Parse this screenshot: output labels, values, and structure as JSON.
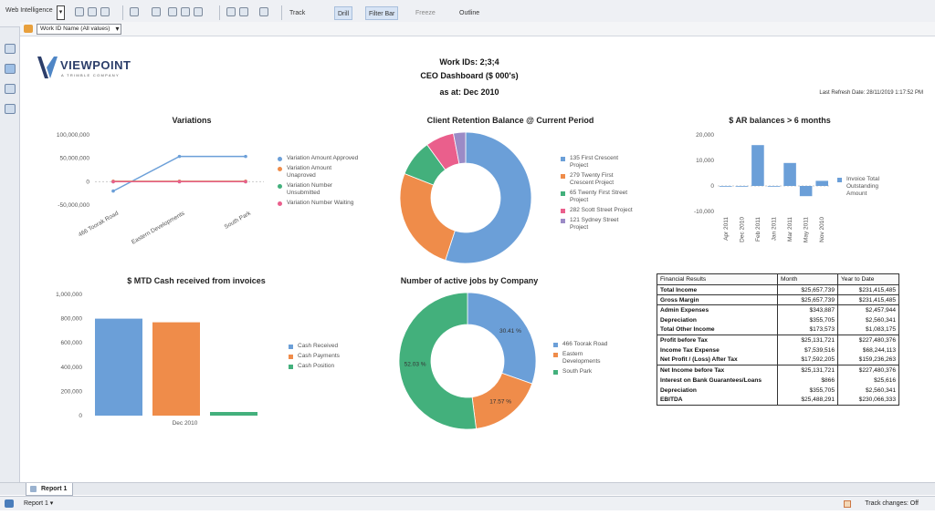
{
  "toolbar": {
    "app_label": "Web Intelligence",
    "track_label": "Track",
    "drill_label": "Drill",
    "filter_bar_label": "Filter Bar",
    "freeze_label": "Freeze",
    "outline_label": "Outline"
  },
  "filter_bar": {
    "prompt_value": "Work ID Name (All values)"
  },
  "report": {
    "logo_text": "VIEWPOINT",
    "logo_sub": "A TRIMBLE COMPANY",
    "header_line1": "Work IDs: 2;3;4",
    "header_line2": "CEO Dashboard ($ 000's)",
    "header_line3": "as at: Dec 2010",
    "last_refresh": "Last Refresh Date: 28/11/2019 1:17:52 PM"
  },
  "colors": {
    "blue": "#6b9fd8",
    "orange": "#ef8c4a",
    "green": "#43b07c",
    "pink": "#ea5f8c",
    "purple": "#9b8bc6",
    "red": "#e5534b"
  },
  "chart_data": [
    {
      "type": "line",
      "title": "Variations",
      "categories": [
        "466 Toorak Road",
        "Eastern Developments",
        "South Park"
      ],
      "yticks": [
        "100,000,000",
        "50,000,000",
        "0",
        "-50,000,000"
      ],
      "ylim": [
        -50000000,
        100000000
      ],
      "series": [
        {
          "name": "Variation Amount Approved",
          "values": [
            -20000000,
            54000000,
            54000000
          ],
          "color": "#6b9fd8"
        },
        {
          "name": "Variation Amount Unaproved",
          "values": [
            1000000,
            1000000,
            1000000
          ],
          "color": "#ef8c4a"
        },
        {
          "name": "Variation Number Unsubmitted",
          "values": [
            0,
            0,
            0
          ],
          "color": "#43b07c"
        },
        {
          "name": "Variation Number Waiting",
          "values": [
            0,
            0,
            0
          ],
          "color": "#ea5f8c"
        }
      ]
    },
    {
      "type": "pie",
      "title": "Client Retention Balance @ Current Period",
      "slices": [
        {
          "label": "135 First Crescent Project",
          "value": 55,
          "color": "#6b9fd8"
        },
        {
          "label": "279 Twenty First Crescent Project",
          "value": 26,
          "color": "#ef8c4a"
        },
        {
          "label": "65 Twenty First Street Project",
          "value": 9,
          "color": "#43b07c"
        },
        {
          "label": "282 Scott Street Project",
          "value": 7,
          "color": "#ea5f8c"
        },
        {
          "label": "121 Sydney Street Project",
          "value": 3,
          "color": "#9b8bc6"
        }
      ]
    },
    {
      "type": "bar",
      "title": "$ AR balances > 6 months",
      "categories": [
        "Apr 2011",
        "Dec 2010",
        "Feb 2011",
        "Jan 2011",
        "Mar 2011",
        "May 2011",
        "Nov 2010"
      ],
      "values": [
        0,
        0,
        16000,
        0,
        9000,
        -4000,
        2000
      ],
      "ylim": [
        -10000,
        20000
      ],
      "yticks": [
        "20,000",
        "10,000",
        "0",
        "-10,000"
      ],
      "series_name": "Invoice Total Outstanding Amount",
      "color": "#6b9fd8"
    },
    {
      "type": "bar",
      "title": "$ MTD Cash received from invoices",
      "categories": [
        "Dec 2010"
      ],
      "yticks": [
        "1,000,000",
        "800,000",
        "600,000",
        "400,000",
        "200,000",
        "0"
      ],
      "ylim": [
        0,
        1000000
      ],
      "series": [
        {
          "name": "Cash Received",
          "values": [
            800000
          ],
          "color": "#6b9fd8"
        },
        {
          "name": "Cash Payments",
          "values": [
            770000
          ],
          "color": "#ef8c4a"
        },
        {
          "name": "Cash Position",
          "values": [
            30000
          ],
          "color": "#43b07c"
        }
      ]
    },
    {
      "type": "pie",
      "title": "Number of active jobs by Company",
      "slices": [
        {
          "label": "466 Toorak Road",
          "value": 30.41,
          "text": "30.41 %",
          "color": "#6b9fd8"
        },
        {
          "label": "Eastern Developments",
          "value": 17.57,
          "text": "17.57 %",
          "color": "#ef8c4a"
        },
        {
          "label": "South Park",
          "value": 52.03,
          "text": "52.03 %",
          "color": "#43b07c"
        }
      ]
    }
  ],
  "financial": {
    "headers": [
      "Financial Results",
      "Month",
      "Year to Date"
    ],
    "rows": [
      {
        "label": "Total Income",
        "month": "$25,657,739",
        "ytd": "$231,415,485",
        "gap": false
      },
      {
        "label": "Gross Margin",
        "month": "$25,657,739",
        "ytd": "$231,415,485",
        "gap": true
      },
      {
        "label": "Admin Expenses",
        "month": "$343,887",
        "ytd": "$2,457,944",
        "gap": true
      },
      {
        "label": "Depreciation",
        "month": "$355,705",
        "ytd": "$2,560,341",
        "gap": false
      },
      {
        "label": "Total Other Income",
        "month": "$173,573",
        "ytd": "$1,083,175",
        "gap": false
      },
      {
        "label": "Profit before Tax",
        "month": "$25,131,721",
        "ytd": "$227,480,376",
        "gap": true
      },
      {
        "label": "Income Tax Expense",
        "month": "$7,539,516",
        "ytd": "$68,244,113",
        "gap": false
      },
      {
        "label": "Net Profit / (Loss) After Tax",
        "month": "$17,592,205",
        "ytd": "$159,236,263",
        "gap": false
      },
      {
        "label": "Net Income before Tax",
        "month": "$25,131,721",
        "ytd": "$227,480,376",
        "gap": true
      },
      {
        "label": "Interest on Bank Guarantees/Loans",
        "month": "$866",
        "ytd": "$25,616",
        "gap": false
      },
      {
        "label": "Depreciation",
        "month": "$355,705",
        "ytd": "$2,560,341",
        "gap": false
      },
      {
        "label": "EBITDA",
        "month": "$25,488,291",
        "ytd": "$230,066,333",
        "gap": false
      }
    ]
  },
  "tabs": {
    "report_tab": "Report 1"
  },
  "status": {
    "report_selector": "Report 1",
    "track_changes": "Track changes: Off"
  }
}
